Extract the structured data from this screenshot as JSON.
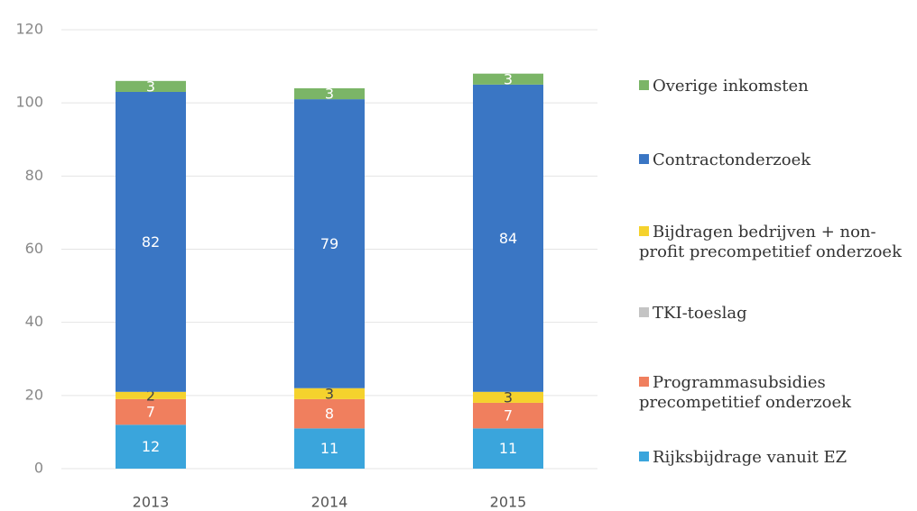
{
  "chart_data": {
    "type": "stacked_bar",
    "categories": [
      "2013",
      "2014",
      "2015"
    ],
    "series": [
      {
        "name": "Rijksbijdrage vanuit EZ",
        "color": "#3aa5dc",
        "values": [
          12,
          11,
          11
        ]
      },
      {
        "name": "Programmasubsidies precompetitief onderzoek",
        "color": "#f07f5e",
        "values": [
          7,
          8,
          7
        ]
      },
      {
        "name": "TKI-toeslag",
        "color": "#c4c4c4",
        "values": [
          0,
          0,
          0
        ]
      },
      {
        "name": "Bijdragen bedrijven + non-profit precompetitief onderzoek",
        "color": "#f5d22d",
        "values": [
          2,
          3,
          3
        ]
      },
      {
        "name": "Contractonderzoek",
        "color": "#3a76c4",
        "values": [
          82,
          79,
          84
        ]
      },
      {
        "name": "Overige inkomsten",
        "color": "#7bb567",
        "values": [
          3,
          3,
          3
        ]
      }
    ],
    "ylim": [
      0,
      120
    ],
    "yticks": [
      0,
      20,
      40,
      60,
      80,
      100,
      120
    ],
    "grid": true,
    "legend": "right"
  }
}
